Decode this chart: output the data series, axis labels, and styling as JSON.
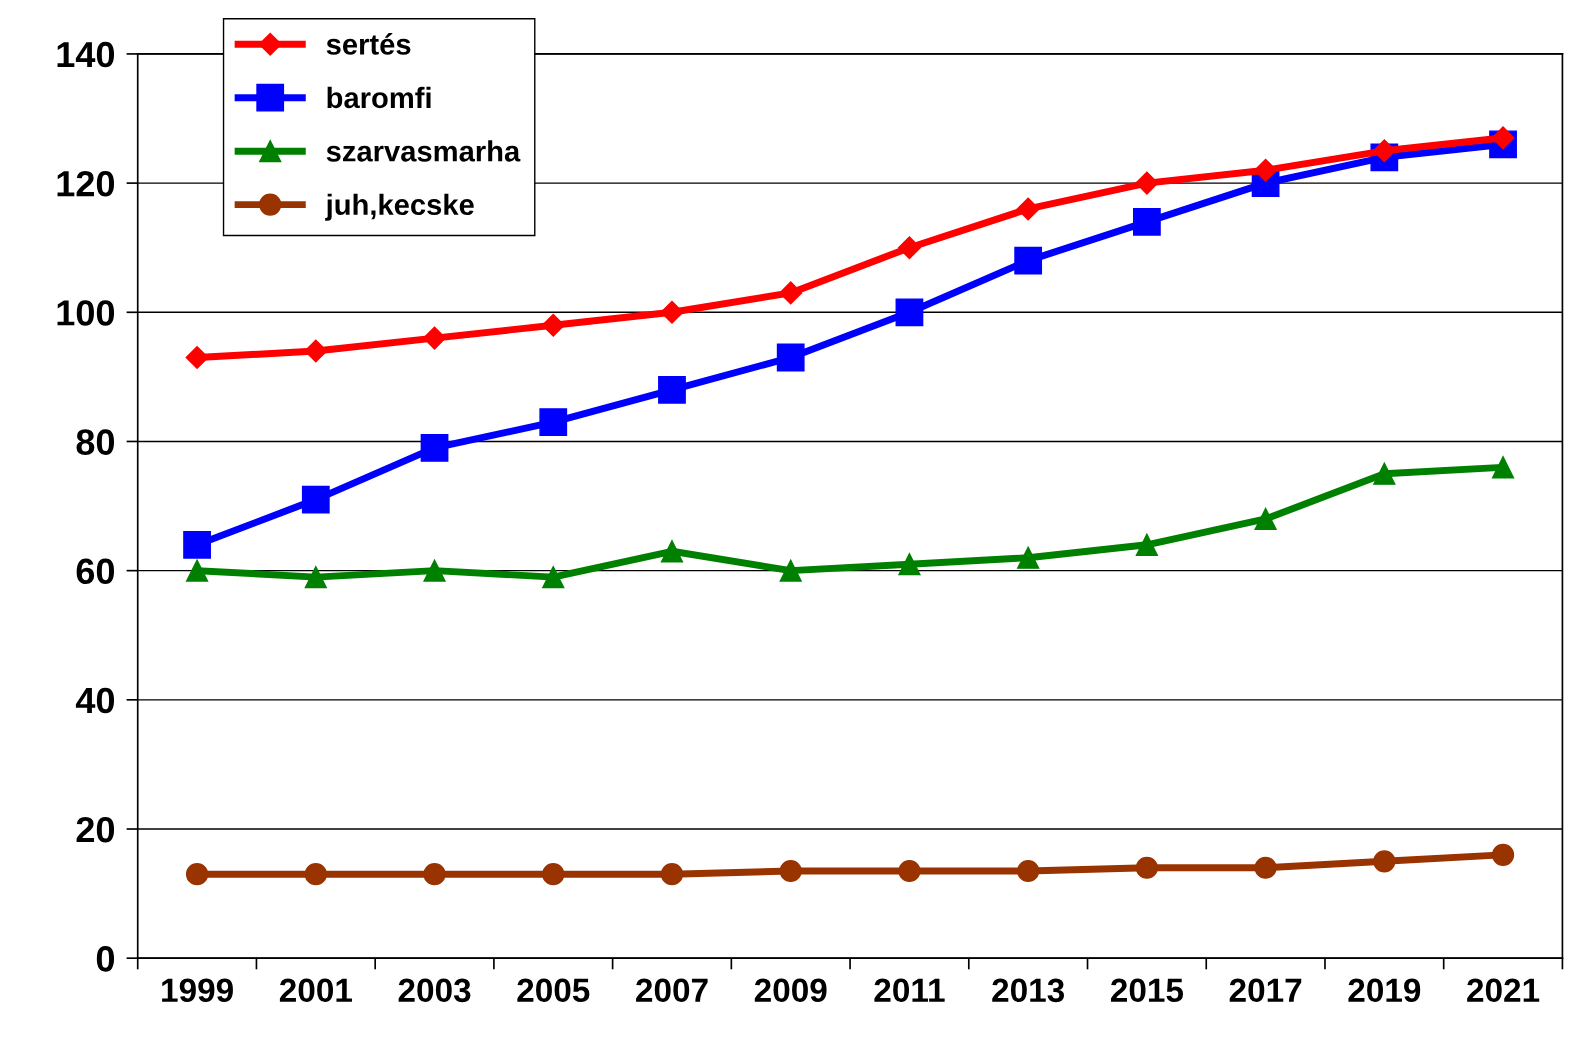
{
  "chart_data": {
    "type": "line",
    "categories": [
      "1999",
      "2001",
      "2003",
      "2005",
      "2007",
      "2009",
      "2011",
      "2013",
      "2015",
      "2017",
      "2019",
      "2021"
    ],
    "series": [
      {
        "name": "sertés",
        "color": "#ff0000",
        "marker": "diamond",
        "values": [
          93,
          94,
          96,
          98,
          100,
          103,
          110,
          116,
          120,
          122,
          125,
          127
        ]
      },
      {
        "name": "baromfi",
        "color": "#0000ff",
        "marker": "square",
        "values": [
          64,
          71,
          79,
          83,
          88,
          93,
          100,
          108,
          114,
          120,
          124,
          126
        ]
      },
      {
        "name": "szarvasmarha",
        "color": "#008000",
        "marker": "triangle",
        "values": [
          60,
          59,
          60,
          59,
          63,
          60,
          61,
          62,
          64,
          68,
          75,
          76
        ]
      },
      {
        "name": "juh,kecske",
        "color": "#993300",
        "marker": "circle",
        "values": [
          13,
          13,
          13,
          13,
          13,
          13.5,
          13.5,
          13.5,
          14,
          14,
          15,
          16
        ]
      }
    ],
    "ylim": [
      0,
      140
    ],
    "yticks": [
      0,
      20,
      40,
      60,
      80,
      100,
      120,
      140
    ],
    "grid": "y",
    "legend": "top left"
  }
}
